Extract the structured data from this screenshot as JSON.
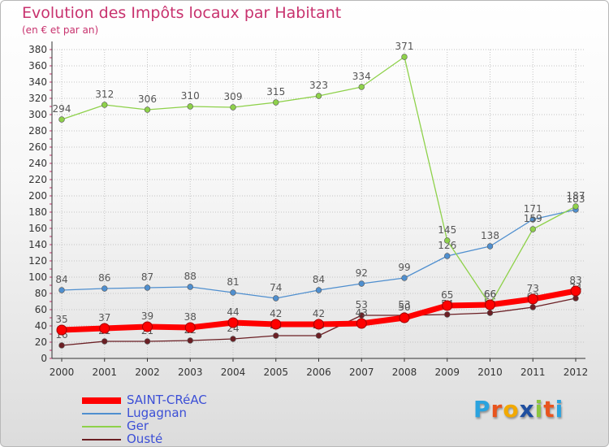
{
  "header": {
    "title": "Evolution des Impôts locaux par Habitant",
    "subtitle": "(en € et par an)"
  },
  "logo": {
    "letters": [
      "P",
      "r",
      "o",
      "x",
      "i",
      "t",
      "i"
    ],
    "colors": [
      "#2aa3df",
      "#e8541e",
      "#f2a900",
      "#1f4fa0",
      "#8cc63f",
      "#e8541e",
      "#2aa3df"
    ]
  },
  "chart_data": {
    "type": "line",
    "title": "Evolution des Impôts locaux par Habitant",
    "subtitle": "(en € et par an)",
    "xlabel": "",
    "ylabel": "",
    "x": [
      "2000",
      "2001",
      "2002",
      "2003",
      "2004",
      "2005",
      "2006",
      "2007",
      "2008",
      "2009",
      "2010",
      "2011",
      "2012"
    ],
    "ylim": [
      0,
      380
    ],
    "yticks": [
      0,
      20,
      40,
      60,
      80,
      100,
      120,
      140,
      160,
      180,
      200,
      220,
      240,
      260,
      280,
      300,
      320,
      340,
      360,
      380
    ],
    "grid": true,
    "legend_position": "bottom-left",
    "series": [
      {
        "name": "Ousté",
        "color": "#6b1f24",
        "values": [
          16,
          21,
          21,
          22,
          24,
          28,
          28,
          53,
          53,
          54,
          56,
          63,
          74
        ],
        "labels": [
          "16",
          "21",
          "21",
          "22",
          "24",
          "28",
          "28",
          "53",
          "53",
          "54",
          "56",
          "63",
          "74"
        ]
      },
      {
        "name": "Lugagnan",
        "color": "#4f8fcf",
        "values": [
          84,
          86,
          87,
          88,
          81,
          74,
          84,
          92,
          99,
          126,
          138,
          171,
          183
        ],
        "labels": [
          "84",
          "86",
          "87",
          "88",
          "81",
          "74",
          "84",
          "92",
          "99",
          "126",
          "138",
          "171",
          "183"
        ]
      },
      {
        "name": "Ger",
        "color": "#8ed14a",
        "values": [
          294,
          312,
          306,
          310,
          309,
          315,
          323,
          334,
          371,
          145,
          66,
          159,
          187
        ],
        "labels": [
          "294",
          "312",
          "306",
          "310",
          "309",
          "315",
          "323",
          "334",
          "371",
          "145",
          "66",
          "159",
          "187"
        ]
      },
      {
        "name": "SAINT-CRéAC",
        "color": "#ff0000",
        "values": [
          35,
          37,
          39,
          38,
          44,
          42,
          42,
          43,
          50,
          65,
          66,
          73,
          83
        ],
        "labels": [
          "35",
          "37",
          "39",
          "38",
          "44",
          "42",
          "42",
          "43",
          "50",
          "65",
          "66",
          "73",
          "83"
        ]
      }
    ]
  },
  "legend": {
    "items": [
      {
        "label": "SAINT-CRéAC",
        "color": "#ff0000",
        "thick": true
      },
      {
        "label": "Lugagnan",
        "color": "#4f8fcf",
        "thick": false
      },
      {
        "label": "Ger",
        "color": "#8ed14a",
        "thick": false
      },
      {
        "label": "Ousté",
        "color": "#6b1f24",
        "thick": false
      }
    ]
  }
}
